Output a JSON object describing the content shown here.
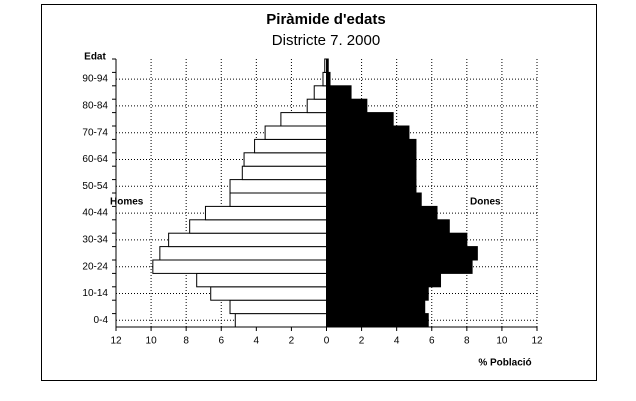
{
  "chart_data": {
    "type": "pyramid",
    "title": "Piràmide d'edats",
    "subtitle": "Districte 7. 2000",
    "y_label": "Edat",
    "x_label": "% Població",
    "categories": [
      "0-4",
      null,
      "10-14",
      null,
      "20-24",
      null,
      "30-34",
      null,
      "40-44",
      null,
      "50-54",
      null,
      "60-64",
      null,
      "70-74",
      null,
      "80-84",
      null,
      "90-94",
      null
    ],
    "series": [
      {
        "name": "Homes",
        "color": "#ffffff",
        "values": [
          -5.2,
          -5.5,
          -6.6,
          -7.4,
          -9.9,
          -9.5,
          -9.0,
          -7.8,
          -6.9,
          -5.5,
          -5.5,
          -4.8,
          -4.7,
          -4.1,
          -3.5,
          -2.6,
          -1.1,
          -0.7,
          -0.2,
          -0.1
        ]
      },
      {
        "name": "Dones",
        "color": "#000000",
        "values": [
          5.8,
          5.6,
          5.8,
          6.5,
          8.3,
          8.6,
          8.0,
          7.0,
          6.3,
          5.4,
          5.1,
          5.1,
          5.1,
          5.1,
          4.7,
          3.8,
          2.3,
          1.4,
          0.2,
          0.1
        ]
      }
    ],
    "xlim": [
      -12,
      12
    ],
    "xticks": [
      {
        "value": -12,
        "label": "12"
      },
      {
        "value": -10,
        "label": "10"
      },
      {
        "value": -8,
        "label": "8"
      },
      {
        "value": -6,
        "label": "6"
      },
      {
        "value": -4,
        "label": "4"
      },
      {
        "value": -2,
        "label": "2"
      },
      0,
      2,
      4,
      6,
      8,
      10,
      12
    ],
    "grid": true
  }
}
